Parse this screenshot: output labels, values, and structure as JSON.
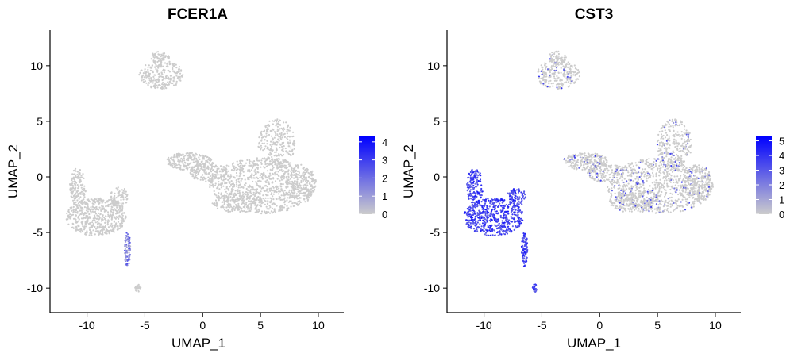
{
  "chart_data": [
    {
      "type": "scatter",
      "title": "FCER1A",
      "xlabel": "UMAP_1",
      "ylabel": "UMAP_2",
      "xlim": [
        -13.2,
        12.2
      ],
      "ylim": [
        -12.2,
        13.2
      ],
      "xticks": [
        -10,
        -5,
        0,
        5,
        10
      ],
      "yticks": [
        -10,
        -5,
        0,
        5,
        10
      ],
      "low_color": "#CCCCCC",
      "high_color": "#0000FF",
      "legend": {
        "placement": "right",
        "ticks": [
          0,
          1,
          2,
          3,
          4
        ],
        "max": 4.3
      },
      "clusters": [
        {
          "name": "",
          "center": [
            3.3,
            -0.3
          ],
          "value": 0
        },
        {
          "name": "",
          "center": [
            -9.0,
            -3.2
          ],
          "value": 0
        },
        {
          "name": "",
          "center": [
            -3.4,
            9.3
          ],
          "value": 0
        },
        {
          "name": "",
          "center": [
            -6.6,
            -6.9
          ],
          "value": 1.6
        },
        {
          "name": "",
          "center": [
            -5.6,
            -10.0
          ],
          "value": 0
        }
      ]
    },
    {
      "type": "scatter",
      "title": "CST3",
      "xlabel": "UMAP_1",
      "ylabel": "UMAP_2",
      "xlim": [
        -13.2,
        12.2
      ],
      "ylim": [
        -12.2,
        13.2
      ],
      "xticks": [
        -10,
        -5,
        0,
        5,
        10
      ],
      "yticks": [
        -10,
        -5,
        0,
        5,
        10
      ],
      "low_color": "#CCCCCC",
      "high_color": "#0000FF",
      "legend": {
        "placement": "right",
        "ticks": [
          0,
          1,
          2,
          3,
          4,
          5
        ],
        "max": 5.3
      },
      "clusters": [
        {
          "name": "",
          "center": [
            3.3,
            -0.3
          ],
          "value": 0.3
        },
        {
          "name": "",
          "center": [
            -9.0,
            -3.2
          ],
          "value": 3.6
        },
        {
          "name": "",
          "center": [
            -3.4,
            9.3
          ],
          "value": 0.3
        },
        {
          "name": "",
          "center": [
            -6.6,
            -6.9
          ],
          "value": 3.8
        },
        {
          "name": "",
          "center": [
            -5.6,
            -10.0
          ],
          "value": 3.2
        }
      ]
    }
  ]
}
